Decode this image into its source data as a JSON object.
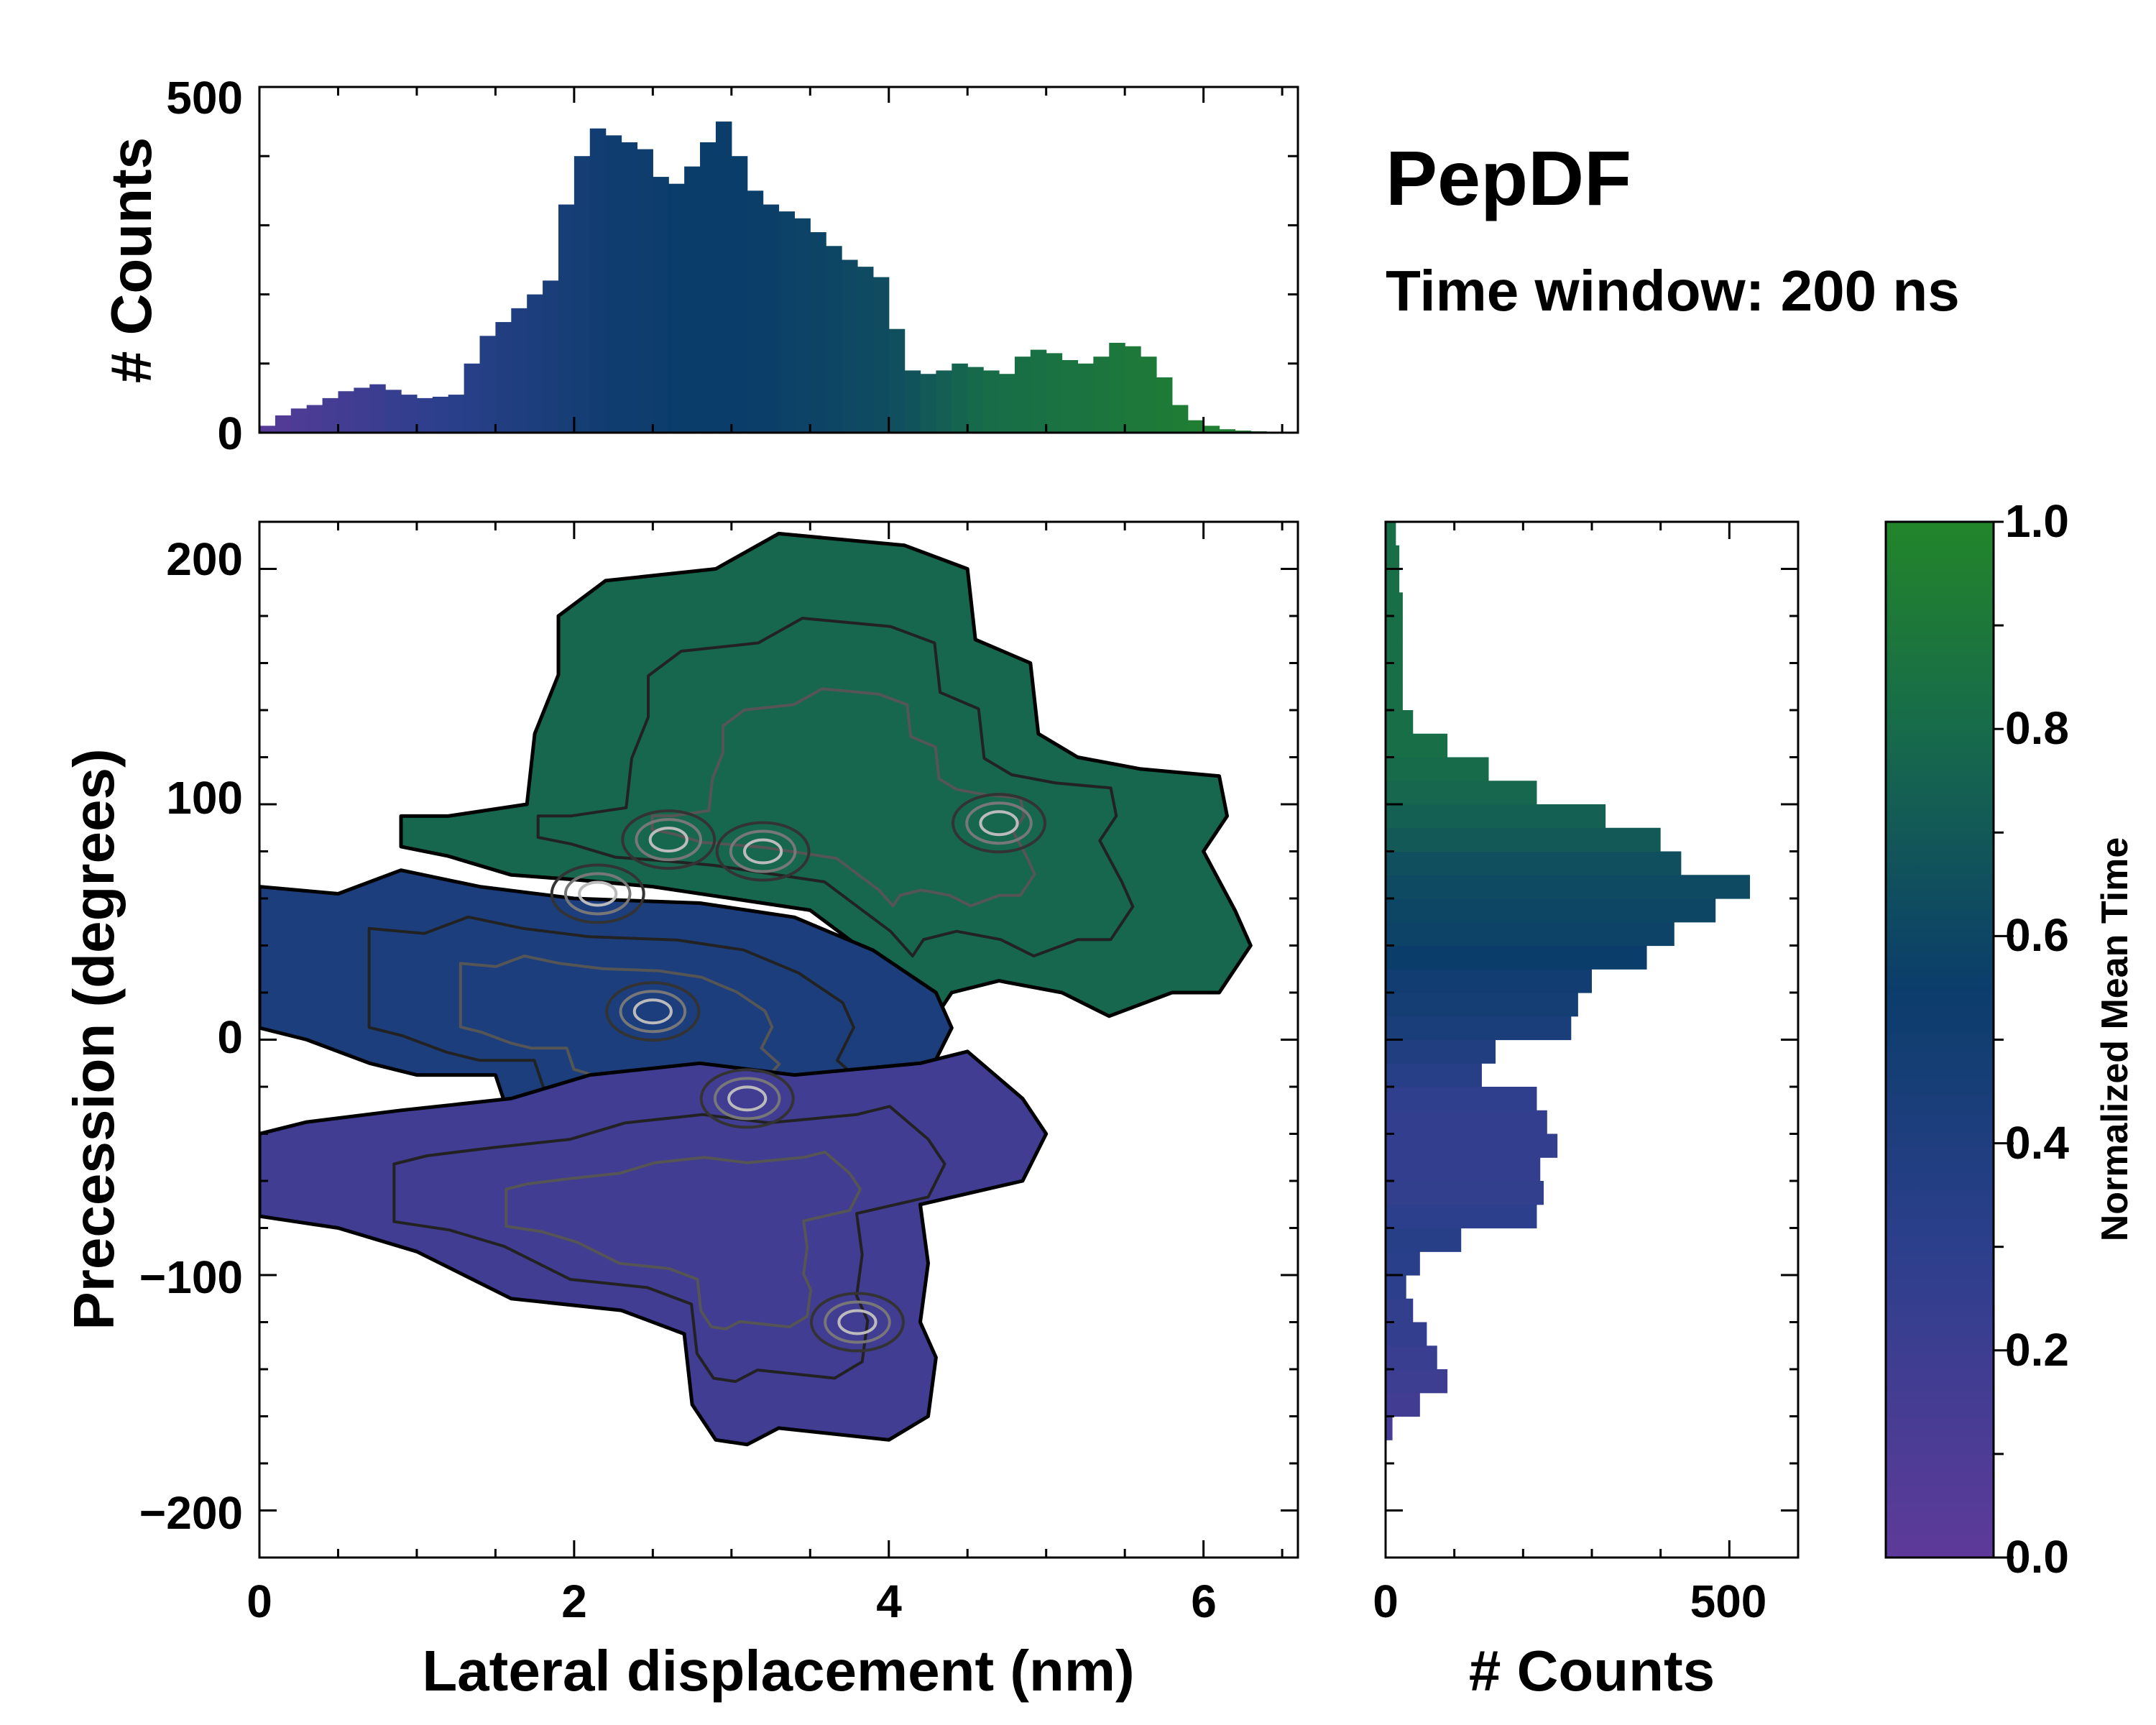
{
  "title": "PepDF",
  "subtitle": "Time window: 200 ns",
  "colors": {
    "low": "#5e3a9a",
    "mid": "#0b3d6b",
    "high": "#22852a"
  },
  "chart_data": [
    {
      "id": "top-histogram",
      "type": "bar",
      "ylabel": "# Counts",
      "xlim": [
        0,
        6.6
      ],
      "ylim": [
        0,
        500
      ],
      "yticks": [
        0,
        500
      ],
      "x": [
        0.05,
        0.15,
        0.25,
        0.35,
        0.45,
        0.55,
        0.65,
        0.75,
        0.85,
        0.95,
        1.05,
        1.15,
        1.25,
        1.35,
        1.45,
        1.55,
        1.65,
        1.75,
        1.85,
        1.95,
        2.05,
        2.15,
        2.25,
        2.35,
        2.45,
        2.55,
        2.65,
        2.75,
        2.85,
        2.95,
        3.05,
        3.15,
        3.25,
        3.35,
        3.45,
        3.55,
        3.65,
        3.75,
        3.85,
        3.95,
        4.05,
        4.15,
        4.25,
        4.35,
        4.45,
        4.55,
        4.65,
        4.75,
        4.85,
        4.95,
        5.05,
        5.15,
        5.25,
        5.35,
        5.45,
        5.55,
        5.65,
        5.75,
        5.85,
        5.95,
        6.05,
        6.15,
        6.25,
        6.35,
        6.45
      ],
      "values": [
        10,
        25,
        35,
        40,
        50,
        60,
        65,
        70,
        62,
        55,
        50,
        52,
        55,
        100,
        140,
        160,
        180,
        200,
        220,
        330,
        400,
        440,
        430,
        420,
        410,
        370,
        360,
        385,
        420,
        450,
        400,
        350,
        330,
        320,
        310,
        290,
        270,
        250,
        240,
        225,
        150,
        90,
        85,
        90,
        100,
        95,
        90,
        85,
        110,
        120,
        115,
        105,
        100,
        110,
        130,
        125,
        110,
        80,
        40,
        18,
        10,
        5,
        3,
        2,
        1
      ],
      "color_norm": [
        0.05,
        0.07,
        0.1,
        0.12,
        0.15,
        0.17,
        0.19,
        0.21,
        0.24,
        0.26,
        0.28,
        0.3,
        0.32,
        0.34,
        0.36,
        0.38,
        0.4,
        0.42,
        0.44,
        0.46,
        0.48,
        0.5,
        0.51,
        0.52,
        0.53,
        0.54,
        0.55,
        0.55,
        0.55,
        0.55,
        0.55,
        0.56,
        0.56,
        0.57,
        0.58,
        0.59,
        0.6,
        0.61,
        0.62,
        0.63,
        0.65,
        0.67,
        0.7,
        0.73,
        0.76,
        0.79,
        0.81,
        0.82,
        0.83,
        0.84,
        0.85,
        0.86,
        0.87,
        0.88,
        0.89,
        0.9,
        0.91,
        0.92,
        0.93,
        0.94,
        0.95,
        0.95,
        0.95,
        0.95,
        0.95
      ]
    },
    {
      "id": "main-density",
      "type": "heatmap",
      "xlabel": "Lateral displacement (nm)",
      "ylabel": "Precession (degrees)",
      "xlim": [
        0,
        6.6
      ],
      "ylim": [
        -220,
        220
      ],
      "xticks": [
        0,
        2,
        4,
        6
      ],
      "yticks": [
        -200,
        -100,
        0,
        100,
        200
      ],
      "colorbar": {
        "label": "Normalized Mean Time",
        "range": [
          0.0,
          1.0
        ],
        "ticks": [
          "0.0",
          "0.2",
          "0.4",
          "0.6",
          "0.8",
          "1.0"
        ]
      },
      "regions": [
        {
          "name": "upper-lobe",
          "value": 0.78,
          "polygon": [
            [
              1.9,
              180
            ],
            [
              2.2,
              195
            ],
            [
              2.9,
              200
            ],
            [
              3.3,
              215
            ],
            [
              4.1,
              210
            ],
            [
              4.5,
              200
            ],
            [
              4.55,
              170
            ],
            [
              4.9,
              160
            ],
            [
              4.95,
              130
            ],
            [
              5.2,
              120
            ],
            [
              5.6,
              115
            ],
            [
              6.1,
              112
            ],
            [
              6.15,
              95
            ],
            [
              6.0,
              80
            ],
            [
              6.2,
              55
            ],
            [
              6.3,
              40
            ],
            [
              6.1,
              20
            ],
            [
              5.8,
              20
            ],
            [
              5.4,
              10
            ],
            [
              5.1,
              20
            ],
            [
              4.7,
              25
            ],
            [
              4.4,
              20
            ],
            [
              4.3,
              10
            ],
            [
              4.1,
              25
            ],
            [
              3.8,
              40
            ],
            [
              3.5,
              55
            ],
            [
              3.0,
              60
            ],
            [
              2.5,
              65
            ],
            [
              2.0,
              68
            ],
            [
              1.6,
              70
            ],
            [
              1.2,
              78
            ],
            [
              0.9,
              82
            ],
            [
              0.9,
              95
            ],
            [
              1.2,
              95
            ],
            [
              1.7,
              100
            ],
            [
              1.75,
              130
            ],
            [
              1.9,
              155
            ]
          ]
        },
        {
          "name": "middle-band",
          "value": 0.42,
          "polygon": [
            [
              0.0,
              65
            ],
            [
              0.5,
              62
            ],
            [
              0.9,
              72
            ],
            [
              1.4,
              65
            ],
            [
              2.0,
              60
            ],
            [
              2.8,
              58
            ],
            [
              3.4,
              52
            ],
            [
              3.9,
              38
            ],
            [
              4.3,
              20
            ],
            [
              4.4,
              5
            ],
            [
              4.25,
              -15
            ],
            [
              4.5,
              -30
            ],
            [
              4.3,
              -45
            ],
            [
              3.8,
              -55
            ],
            [
              3.2,
              -55
            ],
            [
              2.6,
              -50
            ],
            [
              2.1,
              -45
            ],
            [
              1.6,
              -35
            ],
            [
              1.5,
              -15
            ],
            [
              1.0,
              -15
            ],
            [
              0.7,
              -10
            ],
            [
              0.3,
              0
            ],
            [
              0.0,
              5
            ]
          ]
        },
        {
          "name": "lower-lobe",
          "value": 0.18,
          "polygon": [
            [
              0.0,
              -40
            ],
            [
              0.3,
              -35
            ],
            [
              0.9,
              -30
            ],
            [
              1.6,
              -25
            ],
            [
              2.1,
              -15
            ],
            [
              2.8,
              -10
            ],
            [
              3.4,
              -15
            ],
            [
              4.2,
              -10
            ],
            [
              4.5,
              -5
            ],
            [
              4.85,
              -25
            ],
            [
              5.0,
              -40
            ],
            [
              4.85,
              -60
            ],
            [
              4.2,
              -70
            ],
            [
              4.25,
              -95
            ],
            [
              4.2,
              -120
            ],
            [
              4.3,
              -135
            ],
            [
              4.25,
              -160
            ],
            [
              4.0,
              -170
            ],
            [
              3.3,
              -165
            ],
            [
              3.1,
              -172
            ],
            [
              2.9,
              -170
            ],
            [
              2.75,
              -155
            ],
            [
              2.7,
              -125
            ],
            [
              2.3,
              -115
            ],
            [
              1.6,
              -110
            ],
            [
              1.0,
              -90
            ],
            [
              0.5,
              -80
            ],
            [
              0.0,
              -75
            ]
          ]
        }
      ],
      "hotspots": [
        {
          "x": 2.15,
          "y": 62,
          "value": 0.62
        },
        {
          "x": 2.6,
          "y": 85,
          "value": 0.7
        },
        {
          "x": 3.2,
          "y": 80,
          "value": 0.68
        },
        {
          "x": 4.7,
          "y": 92,
          "value": 0.82
        },
        {
          "x": 2.5,
          "y": 12,
          "value": 0.45
        },
        {
          "x": 3.1,
          "y": -25,
          "value": 0.4
        },
        {
          "x": 3.8,
          "y": -120,
          "value": 0.22
        }
      ]
    },
    {
      "id": "right-histogram",
      "type": "bar",
      "orientation": "horizontal",
      "xlabel": "# Counts",
      "xlim": [
        0,
        600
      ],
      "xticks": [
        0,
        500
      ],
      "y": [
        -165,
        -155,
        -145,
        -135,
        -125,
        -115,
        -105,
        -95,
        -85,
        -75,
        -65,
        -55,
        -45,
        -35,
        -25,
        -15,
        -5,
        5,
        15,
        25,
        35,
        45,
        55,
        65,
        75,
        85,
        95,
        105,
        115,
        125,
        135,
        145,
        155,
        165,
        175,
        185,
        195,
        205,
        215
      ],
      "values": [
        10,
        50,
        90,
        75,
        60,
        40,
        30,
        50,
        110,
        220,
        230,
        225,
        250,
        235,
        220,
        140,
        160,
        270,
        280,
        300,
        380,
        420,
        480,
        530,
        430,
        400,
        320,
        220,
        150,
        90,
        40,
        25,
        25,
        25,
        25,
        25,
        20,
        20,
        15
      ],
      "color_norm": [
        0.15,
        0.17,
        0.2,
        0.22,
        0.25,
        0.27,
        0.3,
        0.32,
        0.34,
        0.3,
        0.27,
        0.25,
        0.25,
        0.26,
        0.28,
        0.34,
        0.38,
        0.44,
        0.48,
        0.5,
        0.55,
        0.58,
        0.6,
        0.62,
        0.65,
        0.7,
        0.74,
        0.78,
        0.8,
        0.82,
        0.82,
        0.82,
        0.82,
        0.82,
        0.82,
        0.82,
        0.82,
        0.82,
        0.82
      ]
    }
  ]
}
